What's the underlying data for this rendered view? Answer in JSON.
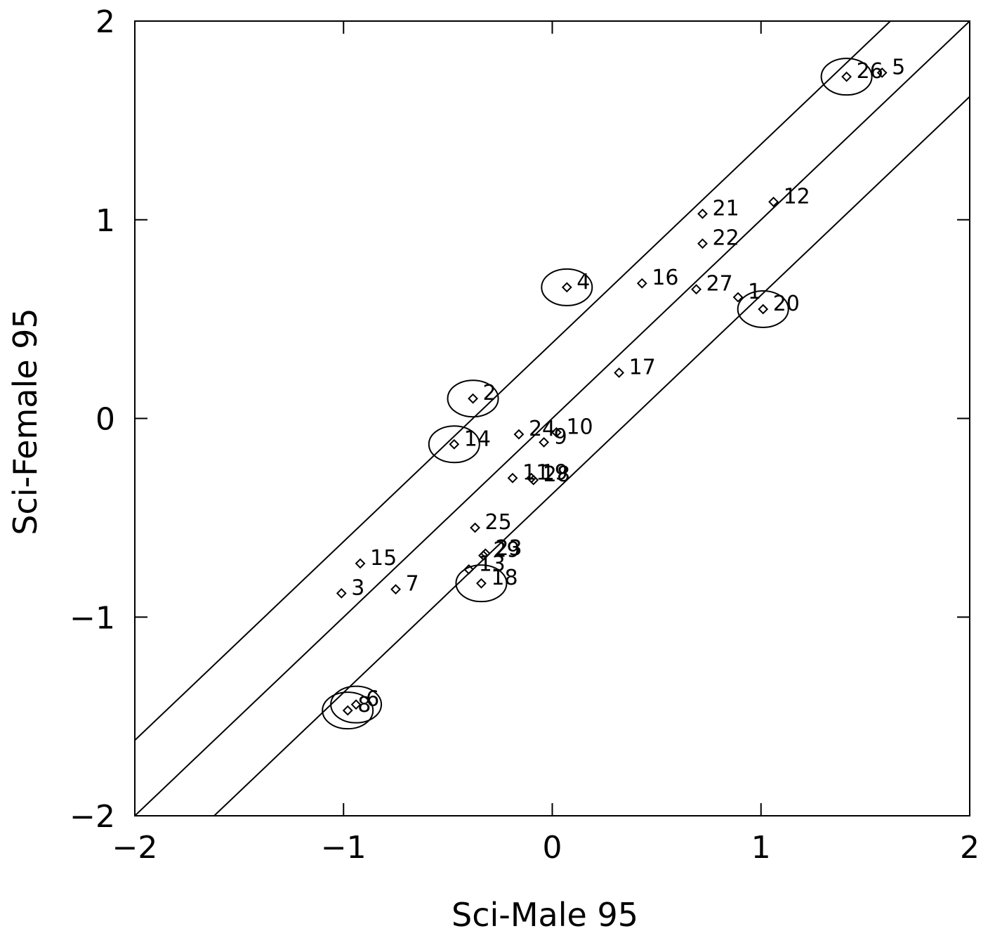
{
  "chart_data": {
    "type": "scatter",
    "xlabel": "Sci-Male 95",
    "ylabel": "Sci-Female 95",
    "xlim": [
      -2,
      2
    ],
    "ylim": [
      -2,
      2
    ],
    "xticks": [
      "-2",
      "-1",
      "0",
      "1",
      "2"
    ],
    "yticks": [
      "-2",
      "-1",
      "0",
      "1",
      "2"
    ],
    "reference_lines": [
      {
        "name": "upper",
        "slope": 1,
        "intercept": 0.38
      },
      {
        "name": "identity",
        "slope": 1,
        "intercept": 0
      },
      {
        "name": "lower",
        "slope": 1,
        "intercept": -0.38
      }
    ],
    "points": [
      {
        "label": "1",
        "x": 0.89,
        "y": 0.61
      },
      {
        "label": "2",
        "x": -0.38,
        "y": 0.1,
        "circled": true
      },
      {
        "label": "3",
        "x": -1.01,
        "y": -0.88
      },
      {
        "label": "4",
        "x": 0.07,
        "y": 0.66,
        "circled": true
      },
      {
        "label": "5",
        "x": 1.58,
        "y": 1.74
      },
      {
        "label": "6",
        "x": -0.94,
        "y": -1.44,
        "circled": true
      },
      {
        "label": "7",
        "x": -0.75,
        "y": -0.86
      },
      {
        "label": "8",
        "x": -0.98,
        "y": -1.47,
        "circled": true
      },
      {
        "label": "9",
        "x": -0.04,
        "y": -0.12
      },
      {
        "label": "10",
        "x": 0.02,
        "y": -0.07
      },
      {
        "label": "11",
        "x": -0.19,
        "y": -0.3
      },
      {
        "label": "12",
        "x": 1.06,
        "y": 1.09
      },
      {
        "label": "13",
        "x": -0.4,
        "y": -0.76
      },
      {
        "label": "14",
        "x": -0.47,
        "y": -0.13,
        "circled": true
      },
      {
        "label": "15",
        "x": -0.92,
        "y": -0.73
      },
      {
        "label": "16",
        "x": 0.43,
        "y": 0.68
      },
      {
        "label": "17",
        "x": 0.32,
        "y": 0.23
      },
      {
        "label": "18",
        "x": -0.34,
        "y": -0.83,
        "circled": true
      },
      {
        "label": "19",
        "x": -0.1,
        "y": -0.3
      },
      {
        "label": "20",
        "x": 1.01,
        "y": 0.55,
        "circled": true
      },
      {
        "label": "21",
        "x": 0.72,
        "y": 1.03
      },
      {
        "label": "22",
        "x": 0.72,
        "y": 0.88
      },
      {
        "label": "23",
        "x": -0.32,
        "y": -0.68
      },
      {
        "label": "24",
        "x": -0.16,
        "y": -0.08
      },
      {
        "label": "25",
        "x": -0.37,
        "y": -0.55
      },
      {
        "label": "26",
        "x": 1.41,
        "y": 1.72,
        "circled": true
      },
      {
        "label": "27",
        "x": 0.69,
        "y": 0.65
      },
      {
        "label": "28",
        "x": -0.09,
        "y": -0.31
      },
      {
        "label": "29",
        "x": -0.33,
        "y": -0.69
      }
    ]
  }
}
